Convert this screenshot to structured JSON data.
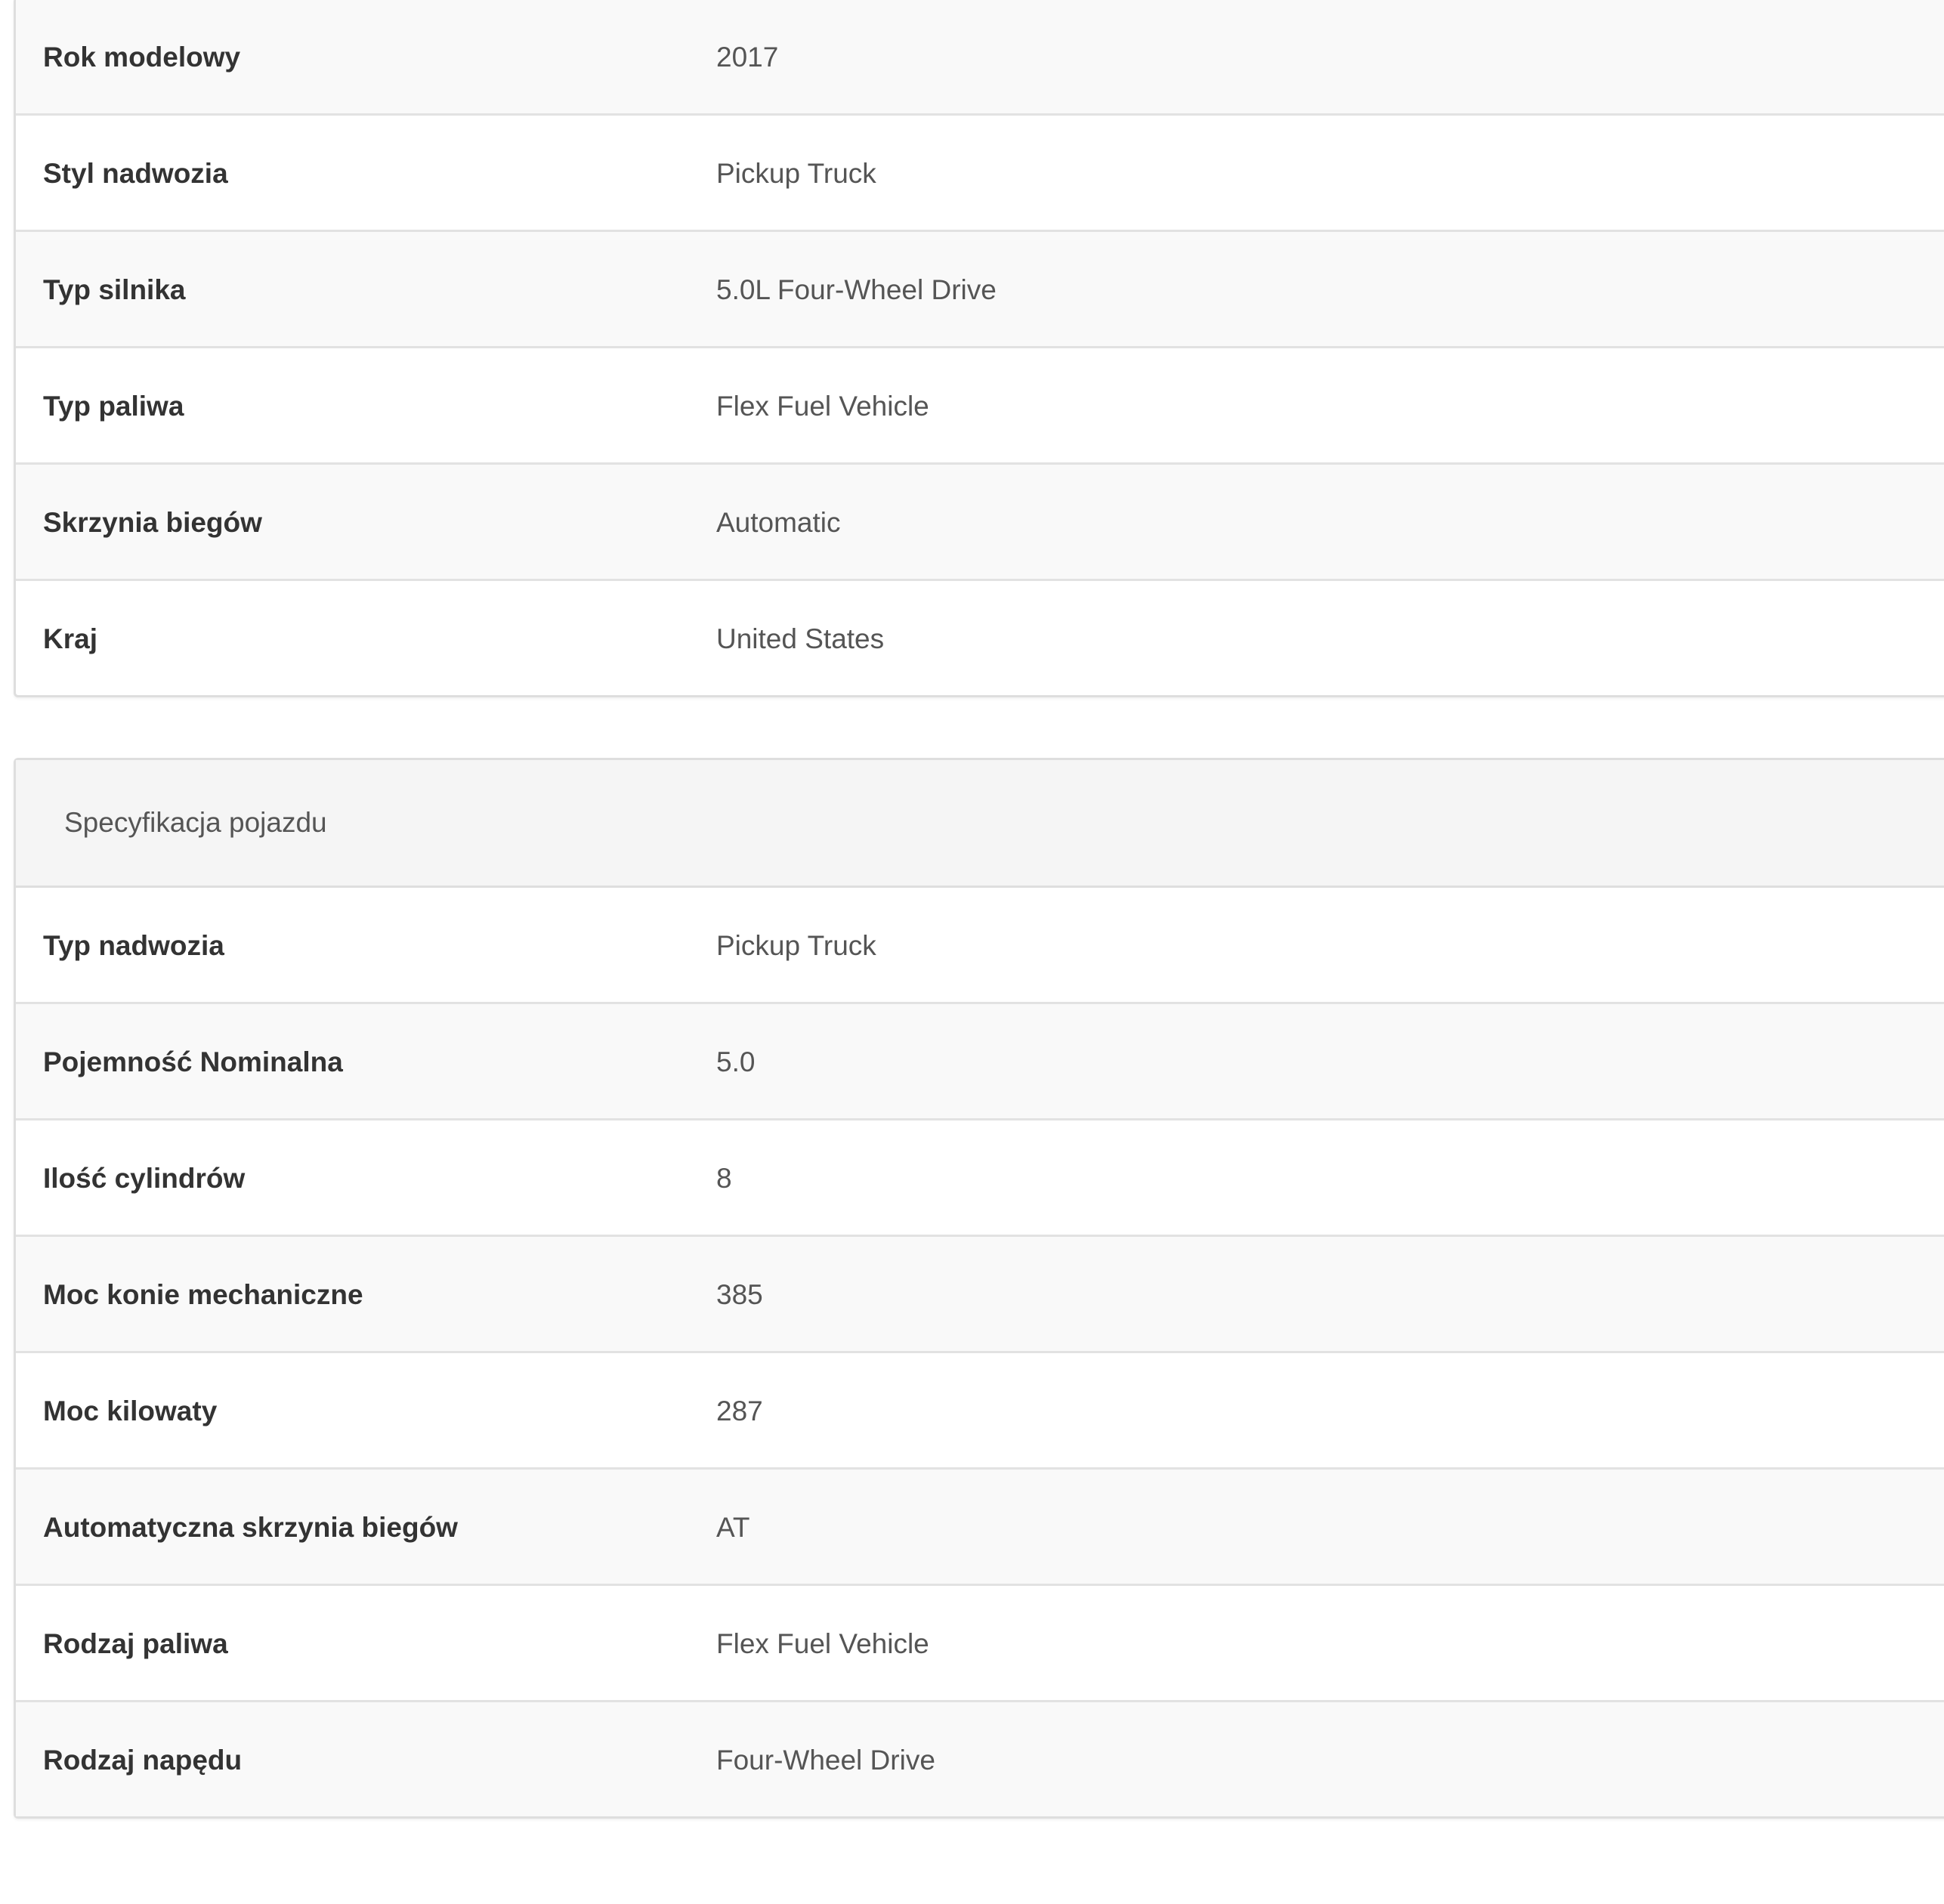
{
  "general": {
    "rows": [
      {
        "label": "Rok modelowy",
        "value": "2017"
      },
      {
        "label": "Styl nadwozia",
        "value": "Pickup Truck"
      },
      {
        "label": "Typ silnika",
        "value": "5.0L Four-Wheel Drive"
      },
      {
        "label": "Typ paliwa",
        "value": "Flex Fuel Vehicle"
      },
      {
        "label": "Skrzynia biegów",
        "value": "Automatic"
      },
      {
        "label": "Kraj",
        "value": "United States"
      }
    ]
  },
  "specs": {
    "title": "Specyfikacja pojazdu",
    "rows": [
      {
        "label": "Typ nadwozia",
        "value": "Pickup Truck"
      },
      {
        "label": "Pojemność Nominalna",
        "value": "5.0"
      },
      {
        "label": "Ilość cylindrów",
        "value": "8"
      },
      {
        "label": "Moc konie mechaniczne",
        "value": "385"
      },
      {
        "label": "Moc kilowaty",
        "value": "287"
      },
      {
        "label": "Automatyczna skrzynia biegów",
        "value": "AT"
      },
      {
        "label": "Rodzaj paliwa",
        "value": "Flex Fuel Vehicle"
      },
      {
        "label": "Rodzaj napędu",
        "value": "Four-Wheel Drive"
      }
    ]
  }
}
